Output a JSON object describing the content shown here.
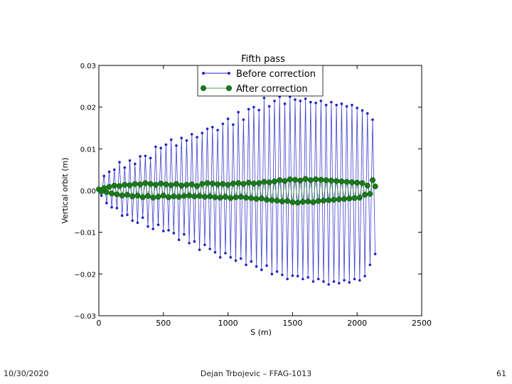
{
  "slide": {
    "date": "10/30/2020",
    "author": "Dejan Trbojevic – FFAG-1013",
    "page_number": "61"
  },
  "chart_data": {
    "type": "line",
    "title": "Fifth pass",
    "xlabel": "S (m)",
    "ylabel": "Vertical orbit (m)",
    "xlim": [
      0,
      2500
    ],
    "ylim": [
      -0.03,
      0.03
    ],
    "x_ticks": [
      0,
      500,
      1000,
      1500,
      2000,
      2500
    ],
    "x_tick_labels": [
      "0",
      "500",
      "1000",
      "1500",
      "2000",
      "2500"
    ],
    "y_ticks": [
      0.03,
      0.02,
      0.01,
      0.0,
      -0.01,
      -0.02,
      -0.03
    ],
    "y_tick_labels": [
      "0.03",
      "0.02",
      "0.01",
      "0.00",
      "−0.01",
      "−0.02",
      "−0.03"
    ],
    "grid": false,
    "legend_position": "upper-center",
    "series": [
      {
        "name": "Before correction",
        "color": "#1f1fc8",
        "marker": "small-dot",
        "x": [
          0,
          20,
          40,
          60,
          80,
          100,
          120,
          140,
          160,
          180,
          200,
          220,
          240,
          260,
          280,
          300,
          320,
          340,
          360,
          380,
          400,
          420,
          440,
          460,
          480,
          500,
          520,
          540,
          560,
          580,
          600,
          620,
          640,
          660,
          680,
          700,
          720,
          740,
          760,
          780,
          800,
          820,
          840,
          860,
          880,
          900,
          920,
          940,
          960,
          980,
          1000,
          1020,
          1040,
          1060,
          1080,
          1100,
          1120,
          1140,
          1160,
          1180,
          1200,
          1220,
          1240,
          1260,
          1280,
          1300,
          1320,
          1340,
          1360,
          1380,
          1400,
          1420,
          1440,
          1460,
          1480,
          1500,
          1520,
          1540,
          1560,
          1580,
          1600,
          1620,
          1640,
          1660,
          1680,
          1700,
          1720,
          1740,
          1760,
          1780,
          1800,
          1820,
          1840,
          1860,
          1880,
          1900,
          1920,
          1940,
          1960,
          1980,
          2000,
          2020,
          2040,
          2060,
          2080,
          2100,
          2120,
          2140
        ],
        "y": [
          0.0002,
          -0.0012,
          0.0035,
          -0.003,
          0.0045,
          -0.004,
          0.005,
          -0.0042,
          0.0068,
          -0.006,
          0.0055,
          -0.0058,
          0.0072,
          -0.0072,
          0.0064,
          -0.0077,
          0.0082,
          -0.0065,
          0.0083,
          -0.0086,
          0.0078,
          -0.0092,
          0.0105,
          -0.0082,
          0.0102,
          -0.0097,
          0.011,
          -0.0095,
          0.0122,
          -0.0102,
          0.0108,
          -0.0118,
          0.0126,
          -0.0105,
          0.012,
          -0.0126,
          0.0135,
          -0.0122,
          0.0128,
          -0.0142,
          0.0138,
          -0.013,
          0.0148,
          -0.014,
          0.0152,
          -0.0148,
          0.0145,
          -0.016,
          0.016,
          -0.015,
          0.0172,
          -0.016,
          0.0158,
          -0.0168,
          0.0188,
          -0.0163,
          0.017,
          -0.0178,
          0.0195,
          -0.017,
          0.02,
          -0.0182,
          0.0193,
          -0.019,
          0.0222,
          -0.018,
          0.0202,
          -0.02,
          0.0215,
          -0.0194,
          0.0225,
          -0.0202,
          0.0208,
          -0.0212,
          0.0225,
          -0.0204,
          0.0218,
          -0.0205,
          0.0215,
          -0.0212,
          0.022,
          -0.0208,
          0.0212,
          -0.0218,
          0.021,
          -0.0212,
          0.0215,
          -0.0218,
          0.0205,
          -0.0225,
          0.0212,
          -0.0218,
          0.0205,
          -0.0222,
          0.0208,
          -0.0215,
          0.0202,
          -0.022,
          0.0205,
          -0.0212,
          0.0198,
          -0.0215,
          0.0192,
          -0.0205,
          0.0185,
          -0.0178,
          0.017,
          -0.0152
        ]
      },
      {
        "name": "After correction",
        "color": "#1a7a1a",
        "marker": "large-dot",
        "x": [
          0,
          20,
          40,
          60,
          80,
          100,
          120,
          140,
          160,
          180,
          200,
          220,
          240,
          260,
          280,
          300,
          320,
          340,
          360,
          380,
          400,
          420,
          440,
          460,
          480,
          500,
          520,
          540,
          560,
          580,
          600,
          620,
          640,
          660,
          680,
          700,
          720,
          740,
          760,
          780,
          800,
          820,
          840,
          860,
          880,
          900,
          920,
          940,
          960,
          980,
          1000,
          1020,
          1040,
          1060,
          1080,
          1100,
          1120,
          1140,
          1160,
          1180,
          1200,
          1220,
          1240,
          1260,
          1280,
          1300,
          1320,
          1340,
          1360,
          1380,
          1400,
          1420,
          1440,
          1460,
          1480,
          1500,
          1520,
          1540,
          1560,
          1580,
          1600,
          1620,
          1640,
          1660,
          1680,
          1700,
          1720,
          1740,
          1760,
          1780,
          1800,
          1820,
          1840,
          1860,
          1880,
          1900,
          1920,
          1940,
          1960,
          1980,
          2000,
          2020,
          2040,
          2060,
          2080,
          2100,
          2120,
          2140
        ],
        "y": [
          0.0003,
          -0.0002,
          0.0006,
          -0.0004,
          0.0009,
          -0.0007,
          0.0012,
          -0.0009,
          0.0011,
          -0.0012,
          0.0014,
          -0.001,
          0.0013,
          -0.0014,
          0.0016,
          -0.0012,
          0.0015,
          -0.0016,
          0.0018,
          -0.0013,
          0.0016,
          -0.0017,
          0.0014,
          -0.0015,
          0.0017,
          -0.0012,
          0.0015,
          -0.0016,
          0.0013,
          -0.0014,
          0.0016,
          -0.0015,
          0.0012,
          -0.0013,
          0.0014,
          -0.0012,
          0.0015,
          -0.0014,
          0.0011,
          -0.0013,
          0.0016,
          -0.0015,
          0.0018,
          -0.0014,
          0.0017,
          -0.0016,
          0.0015,
          -0.0017,
          0.0016,
          -0.0015,
          0.0014,
          -0.0018,
          0.0017,
          -0.0016,
          0.0018,
          -0.0015,
          0.0016,
          -0.0017,
          0.0019,
          -0.0018,
          0.0017,
          -0.002,
          0.0018,
          -0.0019,
          0.0021,
          -0.0022,
          0.002,
          -0.0023,
          0.0022,
          -0.0024,
          0.0025,
          -0.0026,
          0.0023,
          -0.0025,
          0.0027,
          -0.0028,
          0.0026,
          -0.0029,
          0.0024,
          -0.0027,
          0.0028,
          -0.0026,
          0.0025,
          -0.0028,
          0.0027,
          -0.0025,
          0.0026,
          -0.0024,
          0.0025,
          -0.0023,
          0.0024,
          -0.0022,
          0.0023,
          -0.0021,
          0.0022,
          -0.002,
          0.0021,
          -0.0019,
          0.002,
          -0.0018,
          0.0019,
          -0.0017,
          0.0018,
          -0.001,
          0.0012,
          -0.0008,
          0.0025,
          0.001
        ]
      }
    ]
  }
}
